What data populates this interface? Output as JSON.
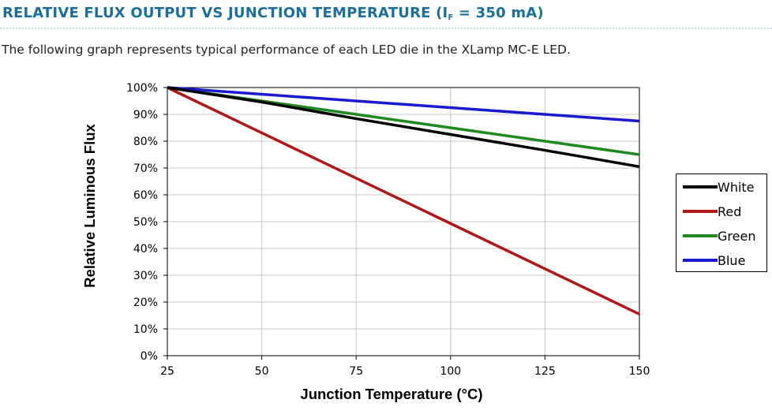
{
  "header": {
    "title_main": "RELATIVE FLUX OUTPUT VS JUNCTION TEMPERATURE (I",
    "title_sub": "F",
    "title_tail": " = 350 mA)",
    "description": "The following graph represents typical performance of each LED die in the XLamp MC-E LED."
  },
  "chart_data": {
    "type": "line",
    "title": "",
    "xlabel": "Junction Temperature (°C)",
    "ylabel": "Relative Luminous Flux",
    "xlim": [
      25,
      150
    ],
    "ylim": [
      0,
      100
    ],
    "x_ticks": [
      25,
      50,
      75,
      100,
      125,
      150
    ],
    "y_ticks": [
      0,
      10,
      20,
      30,
      40,
      50,
      60,
      70,
      80,
      90,
      100
    ],
    "y_tick_labels": [
      "0%",
      "10%",
      "20%",
      "30%",
      "40%",
      "50%",
      "60%",
      "70%",
      "80%",
      "90%",
      "100%"
    ],
    "x_tick_labels": [
      "25",
      "50",
      "75",
      "100",
      "125",
      "150"
    ],
    "grid": true,
    "legend_position": "right",
    "series": [
      {
        "name": "White",
        "color": "#000000",
        "x": [
          25,
          50,
          75,
          100,
          125,
          150
        ],
        "values": [
          100,
          94.6,
          88.4,
          82.5,
          76.6,
          70.5
        ]
      },
      {
        "name": "Red",
        "color": "#b01818",
        "x": [
          25,
          50,
          75,
          100,
          125,
          150
        ],
        "values": [
          100,
          83.1,
          66.2,
          49.3,
          32.4,
          15.5
        ]
      },
      {
        "name": "Green",
        "color": "#1f8a1f",
        "x": [
          25,
          50,
          75,
          100,
          125,
          150
        ],
        "values": [
          100,
          95.0,
          90.0,
          85.0,
          80.0,
          75.0
        ]
      },
      {
        "name": "Blue",
        "color": "#1a1ad0",
        "x": [
          25,
          50,
          75,
          100,
          125,
          150
        ],
        "values": [
          100,
          97.5,
          95.0,
          92.5,
          90.0,
          87.5
        ]
      }
    ]
  }
}
